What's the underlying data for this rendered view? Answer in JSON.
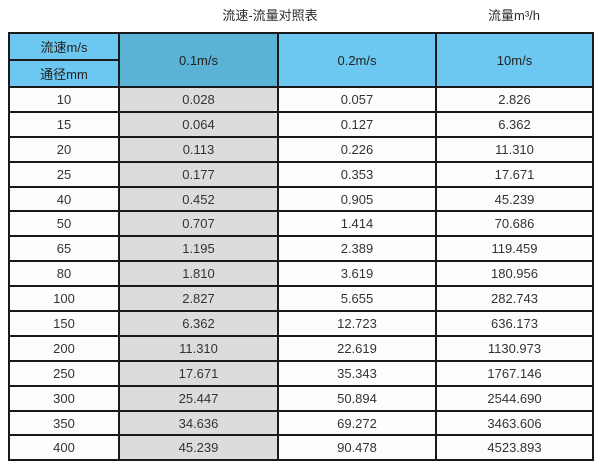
{
  "page": {
    "title": "流速-流量对照表",
    "unit_label": "流量m³/h"
  },
  "colors": {
    "header_light_blue": "#6cc8f0",
    "header_dark_blue": "#5ab2d4",
    "highlight_column_grey": "#dcdcdc",
    "border_black": "#1a1a1a",
    "cell_background": "#fdfdfd",
    "text": "#333333"
  },
  "chart_data": {
    "type": "table",
    "title": "流速-流量对照表",
    "right_label": "流量m³/h",
    "corner_labels": [
      "流速m/s",
      "通径mm"
    ],
    "velocity_columns": [
      "0.1m/s",
      "0.2m/s",
      "10m/s"
    ],
    "row_format": [
      "通径mm",
      "0.1m/s",
      "0.2m/s",
      "10m/s"
    ],
    "rows": [
      [
        "10",
        "0.028",
        "0.057",
        "2.826"
      ],
      [
        "15",
        "0.064",
        "0.127",
        "6.362"
      ],
      [
        "20",
        "0.113",
        "0.226",
        "11.310"
      ],
      [
        "25",
        "0.177",
        "0.353",
        "17.671"
      ],
      [
        "40",
        "0.452",
        "0.905",
        "45.239"
      ],
      [
        "50",
        "0.707",
        "1.414",
        "70.686"
      ],
      [
        "65",
        "1.195",
        "2.389",
        "119.459"
      ],
      [
        "80",
        "1.810",
        "3.619",
        "180.956"
      ],
      [
        "100",
        "2.827",
        "5.655",
        "282.743"
      ],
      [
        "150",
        "6.362",
        "12.723",
        "636.173"
      ],
      [
        "200",
        "11.310",
        "22.619",
        "1130.973"
      ],
      [
        "250",
        "17.671",
        "35.343",
        "1767.146"
      ],
      [
        "300",
        "25.447",
        "50.894",
        "2544.690"
      ],
      [
        "350",
        "34.636",
        "69.272",
        "3463.606"
      ],
      [
        "400",
        "45.239",
        "90.478",
        "4523.893"
      ]
    ]
  }
}
